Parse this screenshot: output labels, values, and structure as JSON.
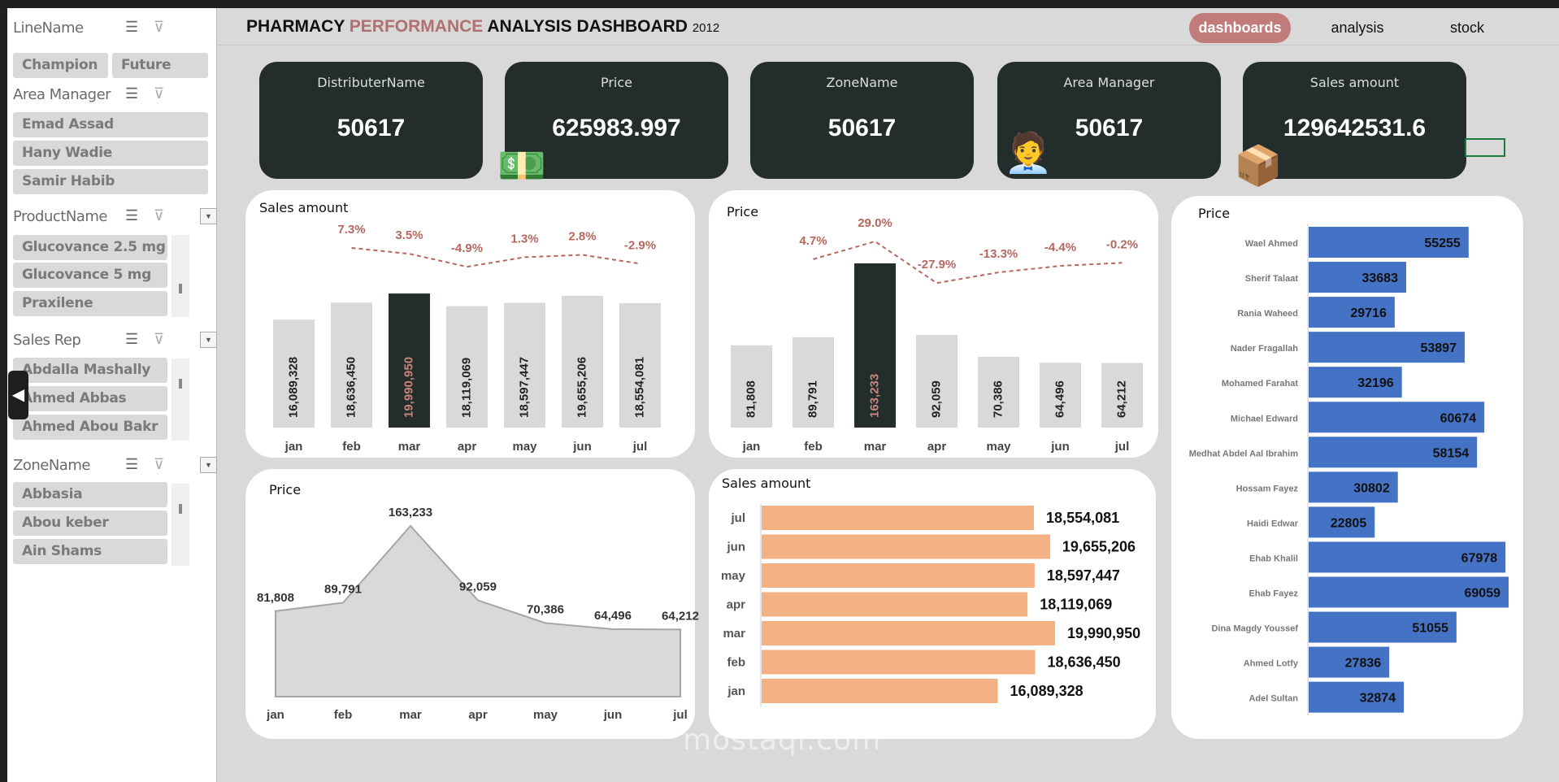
{
  "header": {
    "title_part1": "PHARMACY ",
    "title_accent": "PERFORMANCE",
    "title_part2": " ANALYSIS DASHBOARD ",
    "year": "2012"
  },
  "nav": {
    "items": [
      {
        "label": "dashboards",
        "active": true
      },
      {
        "label": "analysis"
      },
      {
        "label": "stock"
      }
    ]
  },
  "colors": {
    "accent": "#c27b7b",
    "card_dark": "#232d2b",
    "bar_gray": "#d9d9d9",
    "bar_blue": "#4472c4",
    "bar_orange": "#f4b183",
    "pct": "#b5685f"
  },
  "slicers": [
    {
      "title": "LineName",
      "items": [
        "Champion",
        "Future"
      ]
    },
    {
      "title": "Area Manager",
      "items": [
        "Emad Assad",
        "Hany Wadie",
        "Samir Habib"
      ]
    },
    {
      "title": "ProductName",
      "items": [
        "Glucovance 2.5 mg",
        "Glucovance 5 mg",
        "Praxilene"
      ]
    },
    {
      "title": "Sales Rep",
      "items": [
        "Abdalla Mashally",
        "Ahmed Abbas",
        "Ahmed Abou Bakr"
      ]
    },
    {
      "title": "ZoneName",
      "items": [
        "Abbasia",
        "Abou keber",
        "Ain Shams"
      ]
    }
  ],
  "kpis": [
    {
      "label": "DistributerName",
      "value": "50617"
    },
    {
      "label": "Price",
      "value": "625983.997",
      "icon": "money-icon"
    },
    {
      "label": "ZoneName",
      "value": "50617"
    },
    {
      "label": "Area Manager",
      "value": "50617",
      "icon": "manager-icon"
    },
    {
      "label": "Sales amount",
      "value": "129642531.6",
      "icon": "boxes-icon"
    }
  ],
  "watermark": "mostaql.com",
  "chart_data": [
    {
      "id": "sales-column",
      "type": "bar",
      "title": "Sales amount",
      "categories": [
        "jan",
        "feb",
        "mar",
        "apr",
        "may",
        "jun",
        "jul"
      ],
      "values": [
        16089328,
        18636450,
        19990950,
        18119069,
        18597447,
        19655206,
        18554081
      ],
      "labels": [
        "16,089,328",
        "18,636,450",
        "19,990,950",
        "18,119,069",
        "18,597,447",
        "19,655,206",
        "18,554,081"
      ],
      "highlight": "mar",
      "growth_line": {
        "categories": [
          "feb",
          "mar",
          "apr",
          "may",
          "jun",
          "jul"
        ],
        "labels": [
          "7.3%",
          "3.5%",
          "-4.9%",
          "1.3%",
          "2.8%",
          "-2.9%"
        ],
        "values": [
          7.3,
          3.5,
          -4.9,
          1.3,
          2.8,
          -2.9
        ]
      },
      "ylim": [
        0,
        20000000
      ]
    },
    {
      "id": "price-column",
      "type": "bar",
      "title": "Price",
      "categories": [
        "jan",
        "feb",
        "mar",
        "apr",
        "may",
        "jun",
        "jul"
      ],
      "values": [
        81808,
        89791,
        163233,
        92059,
        70386,
        64496,
        64212
      ],
      "labels": [
        "81,808",
        "89,791",
        "163,233",
        "92,059",
        "70,386",
        "64,496",
        "64,212"
      ],
      "highlight": "mar",
      "growth_line": {
        "categories": [
          "feb",
          "mar",
          "apr",
          "may",
          "jun",
          "jul"
        ],
        "labels": [
          "4.7%",
          "29.0%",
          "-27.9%",
          "-13.3%",
          "-4.4%",
          "-0.2%"
        ],
        "values": [
          4.7,
          29.0,
          -27.9,
          -13.3,
          -4.4,
          -0.2
        ]
      },
      "ylim": [
        0,
        163233
      ]
    },
    {
      "id": "price-by-rep",
      "type": "bar",
      "orientation": "horizontal",
      "title": "Price",
      "categories": [
        "Wael Ahmed",
        "Sherif Talaat",
        "Rania Waheed",
        "Nader Fragallah",
        "Mohamed Farahat",
        "Michael Edward",
        "Medhat Abdel Aal Ibrahim",
        "Hossam Fayez",
        "Haidi Edwar",
        "Ehab Khalil",
        "Ehab Fayez",
        "Dina Magdy Youssef",
        "Ahmed Lotfy",
        "Adel Sultan"
      ],
      "values": [
        55255,
        33683,
        29716,
        53897,
        32196,
        60674,
        58154,
        30802,
        22805,
        67978,
        69059,
        51055,
        27836,
        32874
      ]
    },
    {
      "id": "price-area",
      "type": "area",
      "title": "Price",
      "categories": [
        "jan",
        "feb",
        "mar",
        "apr",
        "may",
        "jun",
        "jul"
      ],
      "values": [
        81808,
        89791,
        163233,
        92059,
        70386,
        64496,
        64212
      ],
      "labels": [
        "81,808",
        "89,791",
        "163,233",
        "92,059",
        "70,386",
        "64,496",
        "64,212"
      ],
      "ylim": [
        0,
        163233
      ]
    },
    {
      "id": "sales-bar",
      "type": "bar",
      "orientation": "horizontal",
      "title": "Sales amount",
      "categories": [
        "jul",
        "jun",
        "may",
        "apr",
        "mar",
        "feb",
        "jan"
      ],
      "values": [
        18554081,
        19655206,
        18597447,
        18119069,
        19990950,
        18636450,
        16089328
      ],
      "labels": [
        "18,554,081",
        "19,655,206",
        "18,597,447",
        "18,119,069",
        "19,990,950",
        "18,636,450",
        "16,089,328"
      ]
    }
  ]
}
